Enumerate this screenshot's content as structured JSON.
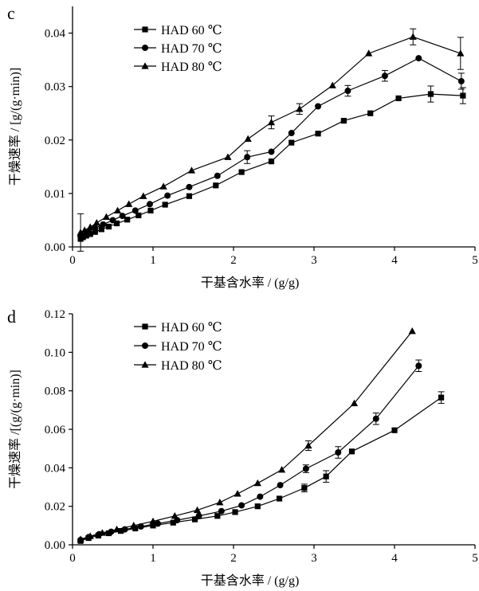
{
  "chart_data": [
    {
      "panel_label": "c",
      "type": "line",
      "xlabel": "干基含水率 / (g/g)",
      "ylabel": "干燥速率 / [g/(g·min)]",
      "xlim": [
        0,
        5
      ],
      "ylim": [
        0,
        0.045
      ],
      "x_ticks": [
        "0",
        "1",
        "2",
        "3",
        "4",
        "5"
      ],
      "y_ticks": [
        "0.00",
        "0.01",
        "0.02",
        "0.03",
        "0.04"
      ],
      "y_tick_values": [
        0,
        0.01,
        0.02,
        0.03,
        0.04
      ],
      "legend_position": "top-left",
      "series": [
        {
          "name": "HAD 60 ℃",
          "marker": "square",
          "x": [
            0.1,
            0.13,
            0.17,
            0.22,
            0.28,
            0.36,
            0.45,
            0.55,
            0.68,
            0.82,
            0.97,
            1.15,
            1.45,
            1.78,
            2.1,
            2.47,
            2.72,
            3.05,
            3.37,
            3.7,
            4.05,
            4.45,
            4.85
          ],
          "y": [
            0.0015,
            0.0018,
            0.0021,
            0.0024,
            0.0028,
            0.0033,
            0.0038,
            0.0044,
            0.0051,
            0.0059,
            0.0068,
            0.0079,
            0.0095,
            0.0115,
            0.014,
            0.016,
            0.0195,
            0.0212,
            0.0236,
            0.025,
            0.0278,
            0.0286,
            0.0283
          ],
          "error": [
            0,
            0,
            0,
            0,
            0,
            0,
            0,
            0,
            0,
            0,
            0,
            0,
            0,
            0,
            0,
            0,
            0,
            0,
            0,
            0,
            0,
            0.0015,
            0.0015
          ]
        },
        {
          "name": "HAD 70 ℃",
          "marker": "circle",
          "x": [
            0.1,
            0.14,
            0.2,
            0.28,
            0.38,
            0.5,
            0.62,
            0.78,
            0.96,
            1.18,
            1.45,
            1.8,
            2.17,
            2.47,
            2.72,
            3.05,
            3.42,
            3.88,
            4.3,
            4.83
          ],
          "y": [
            0.002,
            0.0024,
            0.0029,
            0.0035,
            0.0042,
            0.005,
            0.0058,
            0.0068,
            0.008,
            0.0096,
            0.0112,
            0.0133,
            0.0168,
            0.0178,
            0.0213,
            0.0263,
            0.0292,
            0.032,
            0.0353,
            0.031
          ],
          "error": [
            0,
            0,
            0,
            0,
            0,
            0,
            0,
            0,
            0,
            0,
            0,
            0,
            0.0012,
            0,
            0,
            0,
            0.001,
            0.001,
            0,
            0.0015
          ]
        },
        {
          "name": "HAD 80 ℃",
          "marker": "triangle",
          "x": [
            0.1,
            0.15,
            0.22,
            0.3,
            0.42,
            0.56,
            0.7,
            0.88,
            1.13,
            1.48,
            1.93,
            2.18,
            2.47,
            2.82,
            3.23,
            3.68,
            4.23,
            4.82
          ],
          "y": [
            0.0027,
            0.0031,
            0.0037,
            0.0045,
            0.0056,
            0.0068,
            0.008,
            0.0095,
            0.0113,
            0.0143,
            0.0168,
            0.0202,
            0.0233,
            0.0258,
            0.0302,
            0.0362,
            0.0393,
            0.0362
          ],
          "error": [
            0.0035,
            0,
            0,
            0,
            0,
            0,
            0,
            0,
            0,
            0,
            0,
            0,
            0.0012,
            0.001,
            0,
            0,
            0.0015,
            0.003
          ]
        }
      ]
    },
    {
      "panel_label": "d",
      "type": "line",
      "xlabel": "干基含水率 / (g/g)",
      "ylabel": "干燥速率 /[(g/(g·min)]",
      "xlim": [
        0,
        5
      ],
      "ylim": [
        0,
        0.12
      ],
      "x_ticks": [
        "0",
        "1",
        "2",
        "3",
        "4",
        "5"
      ],
      "y_ticks": [
        "0.00",
        "0.02",
        "0.04",
        "0.06",
        "0.08",
        "0.10",
        "0.12"
      ],
      "y_tick_values": [
        0,
        0.02,
        0.04,
        0.06,
        0.08,
        0.1,
        0.12
      ],
      "legend_position": "top-left",
      "series": [
        {
          "name": "HAD 60 ℃",
          "marker": "square",
          "x": [
            0.1,
            0.2,
            0.32,
            0.45,
            0.6,
            0.78,
            1.0,
            1.25,
            1.52,
            1.8,
            2.02,
            2.3,
            2.57,
            2.88,
            3.15,
            3.47,
            4.0,
            4.58
          ],
          "y": [
            0.002,
            0.0035,
            0.0048,
            0.006,
            0.0072,
            0.0085,
            0.01,
            0.0115,
            0.0132,
            0.015,
            0.017,
            0.02,
            0.024,
            0.0295,
            0.0355,
            0.0485,
            0.0595,
            0.0765
          ],
          "error": [
            0,
            0,
            0,
            0,
            0,
            0,
            0,
            0,
            0,
            0,
            0,
            0,
            0,
            0.002,
            0.003,
            0,
            0,
            0.003
          ]
        },
        {
          "name": "HAD 70 ℃",
          "marker": "circle",
          "x": [
            0.1,
            0.2,
            0.33,
            0.48,
            0.65,
            0.85,
            1.06,
            1.3,
            1.57,
            1.85,
            2.1,
            2.33,
            2.58,
            2.9,
            3.3,
            3.77,
            4.3
          ],
          "y": [
            0.0025,
            0.004,
            0.0055,
            0.0068,
            0.008,
            0.0095,
            0.011,
            0.0128,
            0.015,
            0.0175,
            0.0205,
            0.025,
            0.031,
            0.0395,
            0.048,
            0.0655,
            0.093
          ],
          "error": [
            0,
            0,
            0,
            0,
            0,
            0,
            0,
            0,
            0,
            0,
            0,
            0,
            0,
            0.002,
            0.003,
            0.003,
            0.003
          ]
        },
        {
          "name": "HAD 80 ℃",
          "marker": "triangle",
          "x": [
            0.1,
            0.22,
            0.37,
            0.55,
            0.76,
            1.0,
            1.27,
            1.55,
            1.83,
            2.05,
            2.3,
            2.6,
            2.93,
            3.5,
            4.22
          ],
          "y": [
            0.0028,
            0.0045,
            0.0062,
            0.008,
            0.01,
            0.0122,
            0.015,
            0.018,
            0.022,
            0.0265,
            0.032,
            0.039,
            0.0515,
            0.0735,
            0.111
          ],
          "error": [
            0,
            0,
            0,
            0,
            0,
            0,
            0,
            0,
            0,
            0,
            0,
            0,
            0.0025,
            0,
            0
          ]
        }
      ]
    }
  ]
}
